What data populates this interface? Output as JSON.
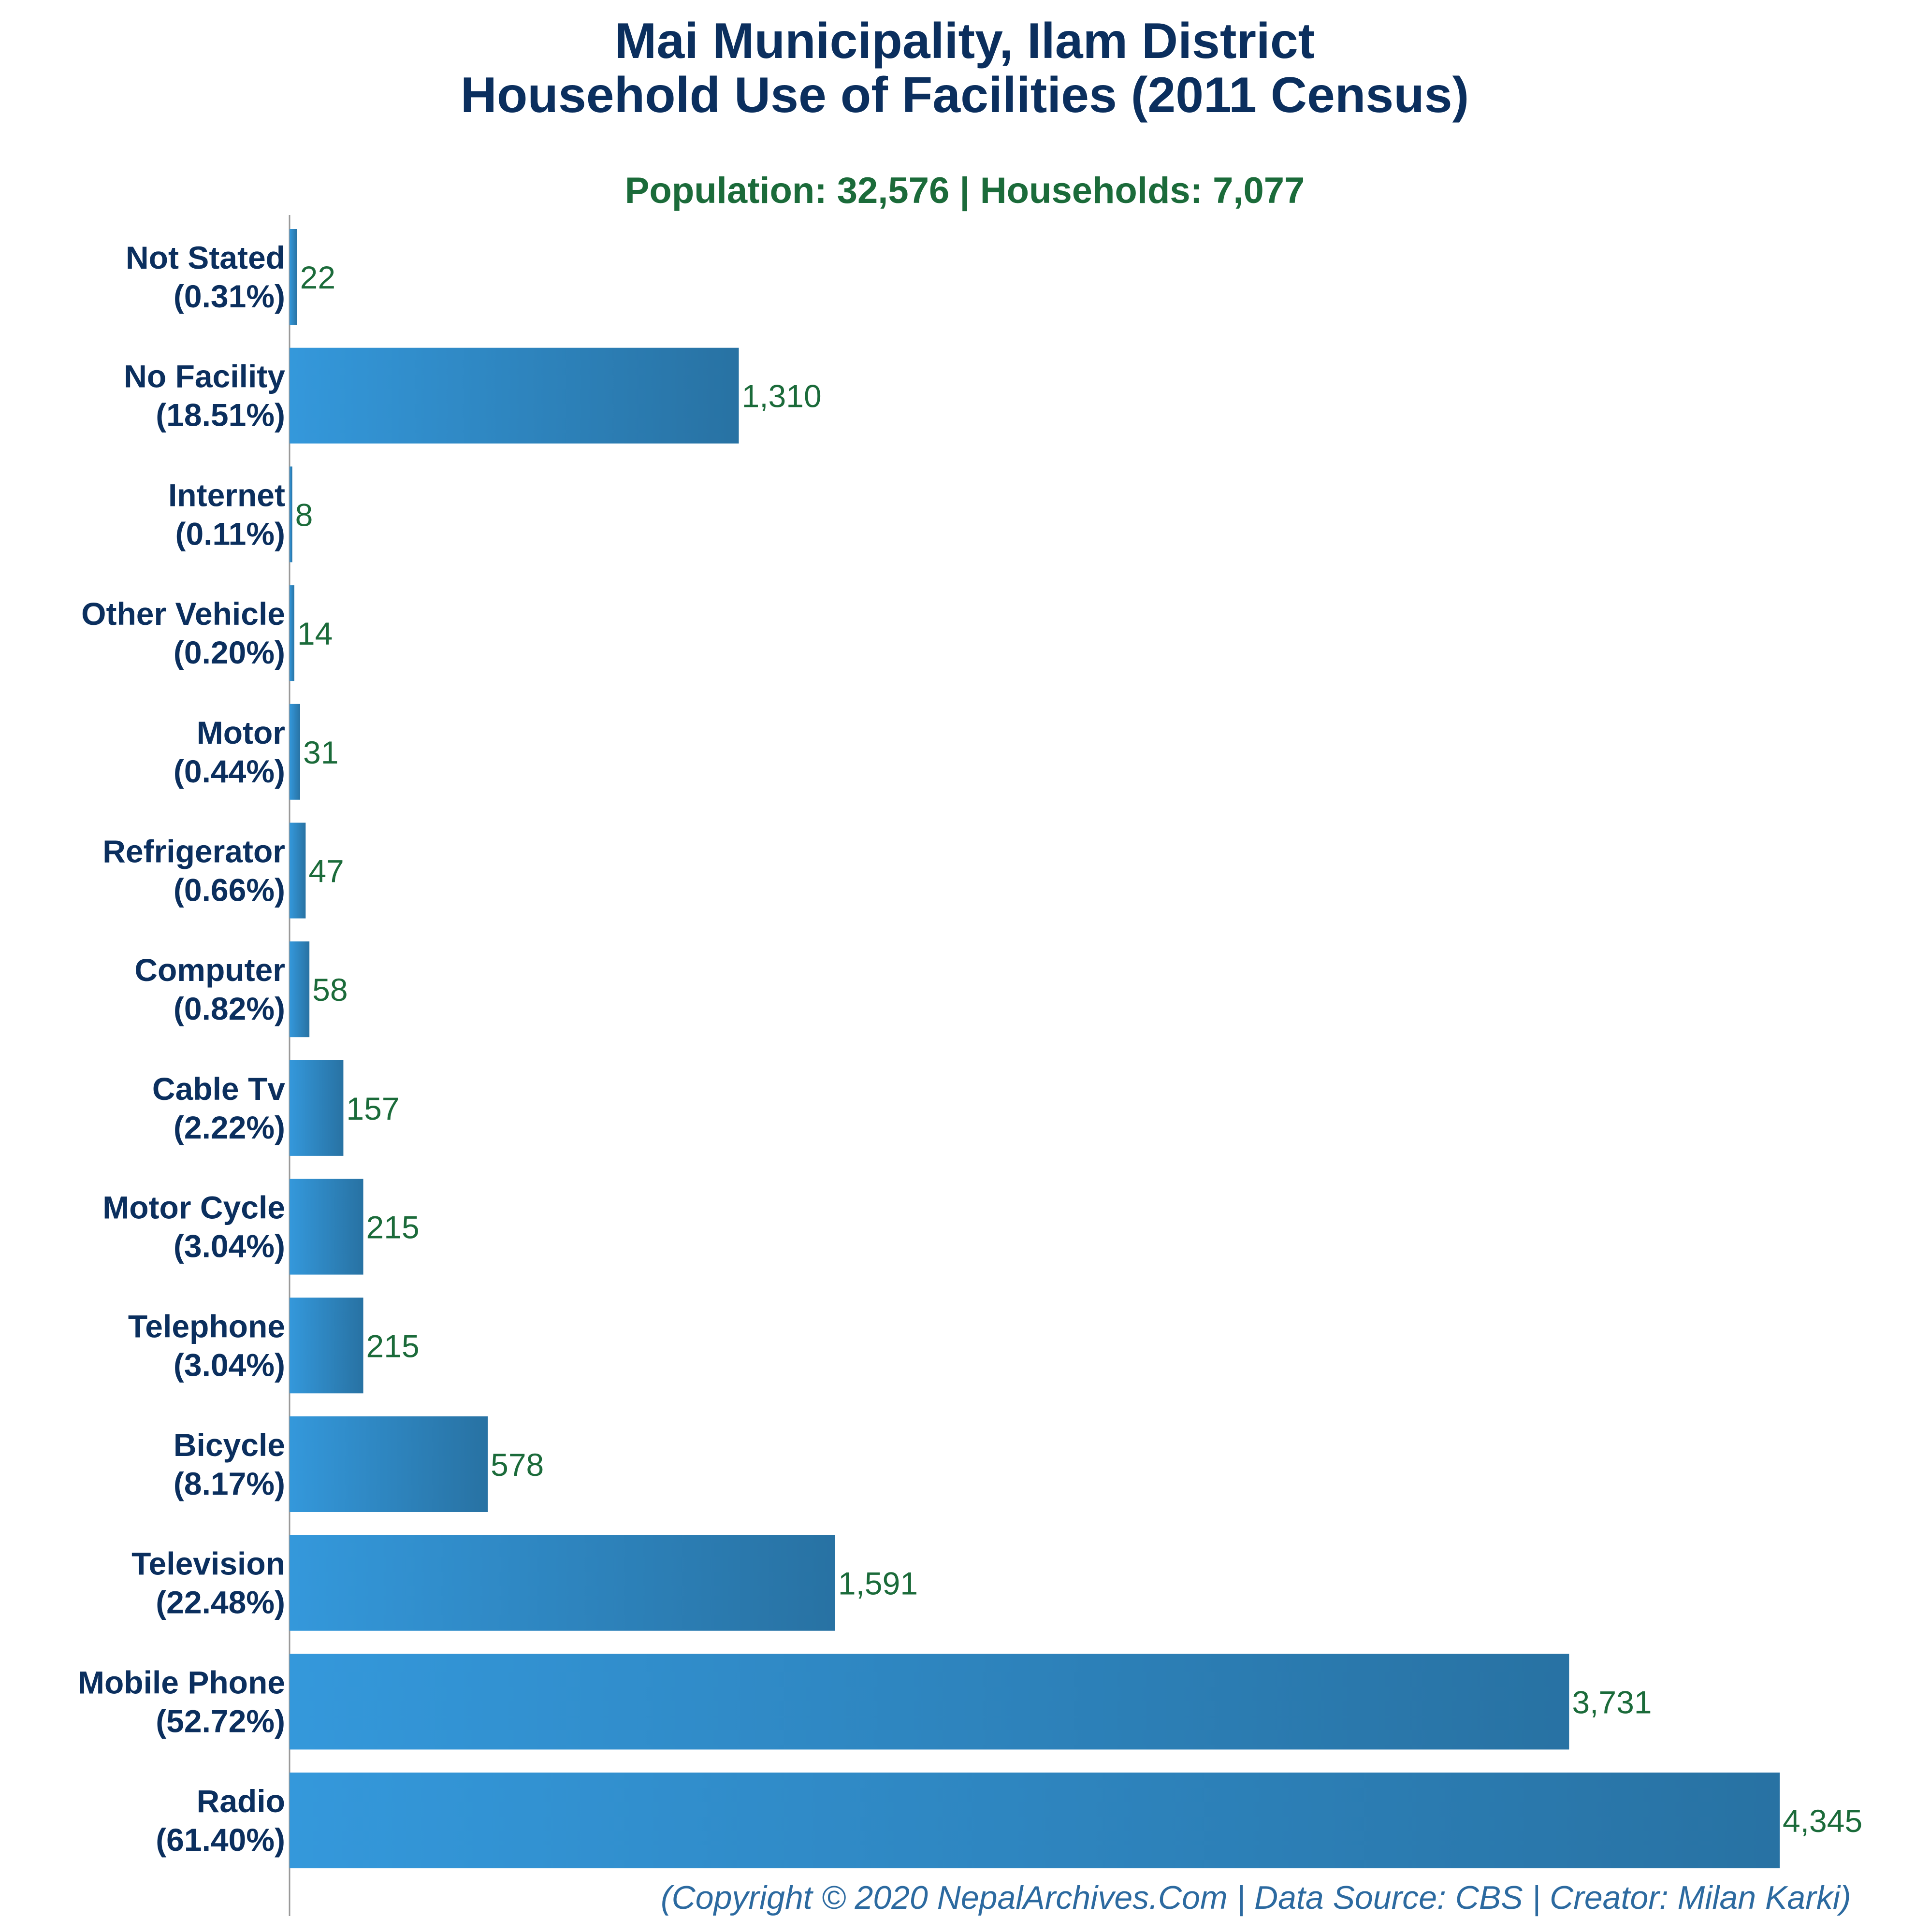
{
  "chart_data": {
    "type": "bar",
    "orientation": "horizontal",
    "title_line1": "Mai Municipality, Ilam District",
    "title_line2": "Household Use of Facilities (2011 Census)",
    "subtitle": "Population: 32,576 | Households: 7,077",
    "footer": "(Copyright © 2020 NepalArchives.Com | Data Source: CBS | Creator: Milan Karki)",
    "xlim": [
      0,
      4345
    ],
    "grid": false,
    "legend": "none",
    "bars": [
      {
        "name": "Not Stated",
        "pct": "(0.31%)",
        "value": 22,
        "value_label": "22"
      },
      {
        "name": "No Facility",
        "pct": "(18.51%)",
        "value": 1310,
        "value_label": "1,310"
      },
      {
        "name": "Internet",
        "pct": "(0.11%)",
        "value": 8,
        "value_label": "8"
      },
      {
        "name": "Other Vehicle",
        "pct": "(0.20%)",
        "value": 14,
        "value_label": "14"
      },
      {
        "name": "Motor",
        "pct": "(0.44%)",
        "value": 31,
        "value_label": "31"
      },
      {
        "name": "Refrigerator",
        "pct": "(0.66%)",
        "value": 47,
        "value_label": "47"
      },
      {
        "name": "Computer",
        "pct": "(0.82%)",
        "value": 58,
        "value_label": "58"
      },
      {
        "name": "Cable Tv",
        "pct": "(2.22%)",
        "value": 157,
        "value_label": "157"
      },
      {
        "name": "Motor Cycle",
        "pct": "(3.04%)",
        "value": 215,
        "value_label": "215"
      },
      {
        "name": "Telephone",
        "pct": "(3.04%)",
        "value": 215,
        "value_label": "215"
      },
      {
        "name": "Bicycle",
        "pct": "(8.17%)",
        "value": 578,
        "value_label": "578"
      },
      {
        "name": "Television",
        "pct": "(22.48%)",
        "value": 1591,
        "value_label": "1,591"
      },
      {
        "name": "Mobile Phone",
        "pct": "(52.72%)",
        "value": 3731,
        "value_label": "3,731"
      },
      {
        "name": "Radio",
        "pct": "(61.40%)",
        "value": 4345,
        "value_label": "4,345"
      }
    ],
    "colors": {
      "title": "#0b2f5e",
      "subtitle": "#1b6b3a",
      "value_label": "#1b6b3a",
      "bar_start": "#3498db",
      "bar_end": "#2872a3",
      "axis": "#999999",
      "footer": "#2c6aa0"
    }
  }
}
